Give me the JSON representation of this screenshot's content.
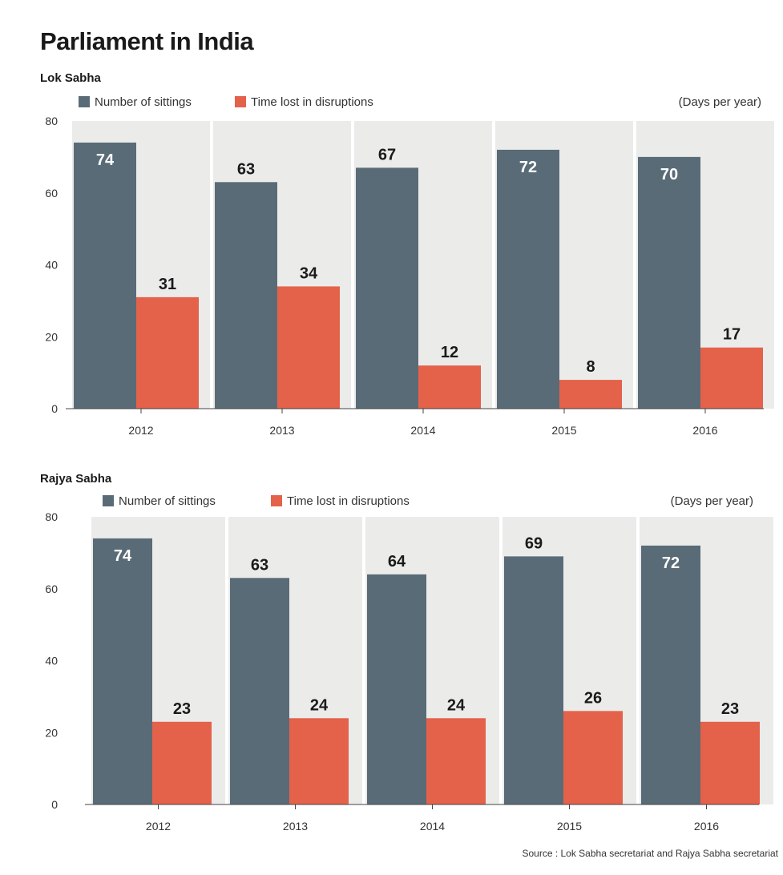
{
  "page": {
    "title": "Parliament in India",
    "source": "Source : Lok Sabha secretariat and Rajya Sabha secretariat"
  },
  "colors": {
    "sittings": "#5a6b78",
    "disruptions": "#e4614a",
    "band": "#ebebea"
  },
  "chart_data": [
    {
      "type": "bar",
      "title": "Lok Sabha",
      "unit_note": "(Days per year)",
      "categories": [
        "2012",
        "2013",
        "2014",
        "2015",
        "2016"
      ],
      "series": [
        {
          "name": "Number of sittings",
          "values": [
            74,
            63,
            67,
            72,
            70
          ]
        },
        {
          "name": "Time lost in disruptions",
          "values": [
            31,
            34,
            12,
            8,
            17
          ]
        }
      ],
      "ylim": [
        0,
        80
      ],
      "yticks": [
        0,
        20,
        40,
        60,
        80
      ],
      "legend": "top-left"
    },
    {
      "type": "bar",
      "title": "Rajya Sabha",
      "unit_note": "(Days per year)",
      "categories": [
        "2012",
        "2013",
        "2014",
        "2015",
        "2016"
      ],
      "series": [
        {
          "name": "Number of sittings",
          "values": [
            74,
            63,
            64,
            69,
            72
          ]
        },
        {
          "name": "Time lost in disruptions",
          "values": [
            23,
            24,
            24,
            26,
            23
          ]
        }
      ],
      "ylim": [
        0,
        80
      ],
      "yticks": [
        0,
        20,
        40,
        60,
        80
      ],
      "legend": "top-left"
    }
  ]
}
